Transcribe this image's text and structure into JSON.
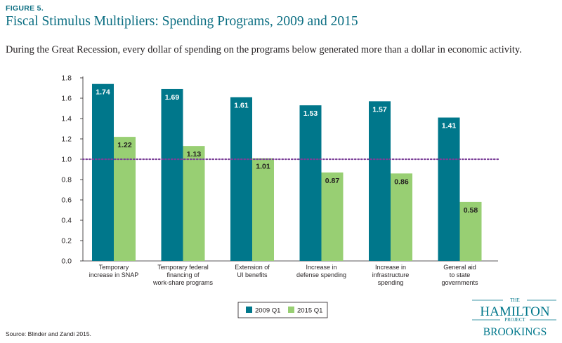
{
  "figure_label": "FIGURE 5.",
  "title": "Fiscal Stimulus Multipliers: Spending Programs, 2009 and 2015",
  "subtitle": "During the Great Recession, every dollar of spending on the programs below generated more than a dollar in economic activity.",
  "source": "Source: Blinder and Zandi 2015.",
  "logo": {
    "the": "THE",
    "hamilton": "HAMILTON",
    "project": "PROJECT",
    "brookings": "BROOKINGS"
  },
  "colors": {
    "series_2009": "#00778b",
    "series_2015": "#98cf73",
    "reference_line": "#7b3f98",
    "title": "#0b6e82"
  },
  "chart_data": {
    "type": "bar",
    "categories": [
      [
        "Temporary",
        "increase in SNAP"
      ],
      [
        "Temporary federal",
        "financing of",
        "work-share programs"
      ],
      [
        "Extension of",
        "UI benefits"
      ],
      [
        "Increase in",
        "defense spending"
      ],
      [
        "Increase in",
        "infrastructure",
        "spending"
      ],
      [
        "General aid",
        "to state",
        "governments"
      ]
    ],
    "series": [
      {
        "name": "2009 Q1",
        "values": [
          1.74,
          1.69,
          1.61,
          1.53,
          1.57,
          1.41
        ],
        "labels": [
          "1.74",
          "1.69",
          "1.61",
          "1.53",
          "1.57",
          "1.41"
        ]
      },
      {
        "name": "2015 Q1",
        "values": [
          1.22,
          1.13,
          1.01,
          0.87,
          0.86,
          0.58
        ],
        "labels": [
          "1.22",
          "1.13",
          "1.01",
          "0.87",
          "0.86",
          "0.58"
        ]
      }
    ],
    "ylim": [
      0,
      1.8
    ],
    "yticks": [
      "0.0",
      "0.2",
      "0.4",
      "0.6",
      "0.8",
      "1.0",
      "1.2",
      "1.4",
      "1.6",
      "1.8"
    ],
    "reference_line": 1.0,
    "legend_position": "bottom-center",
    "grid": false
  }
}
